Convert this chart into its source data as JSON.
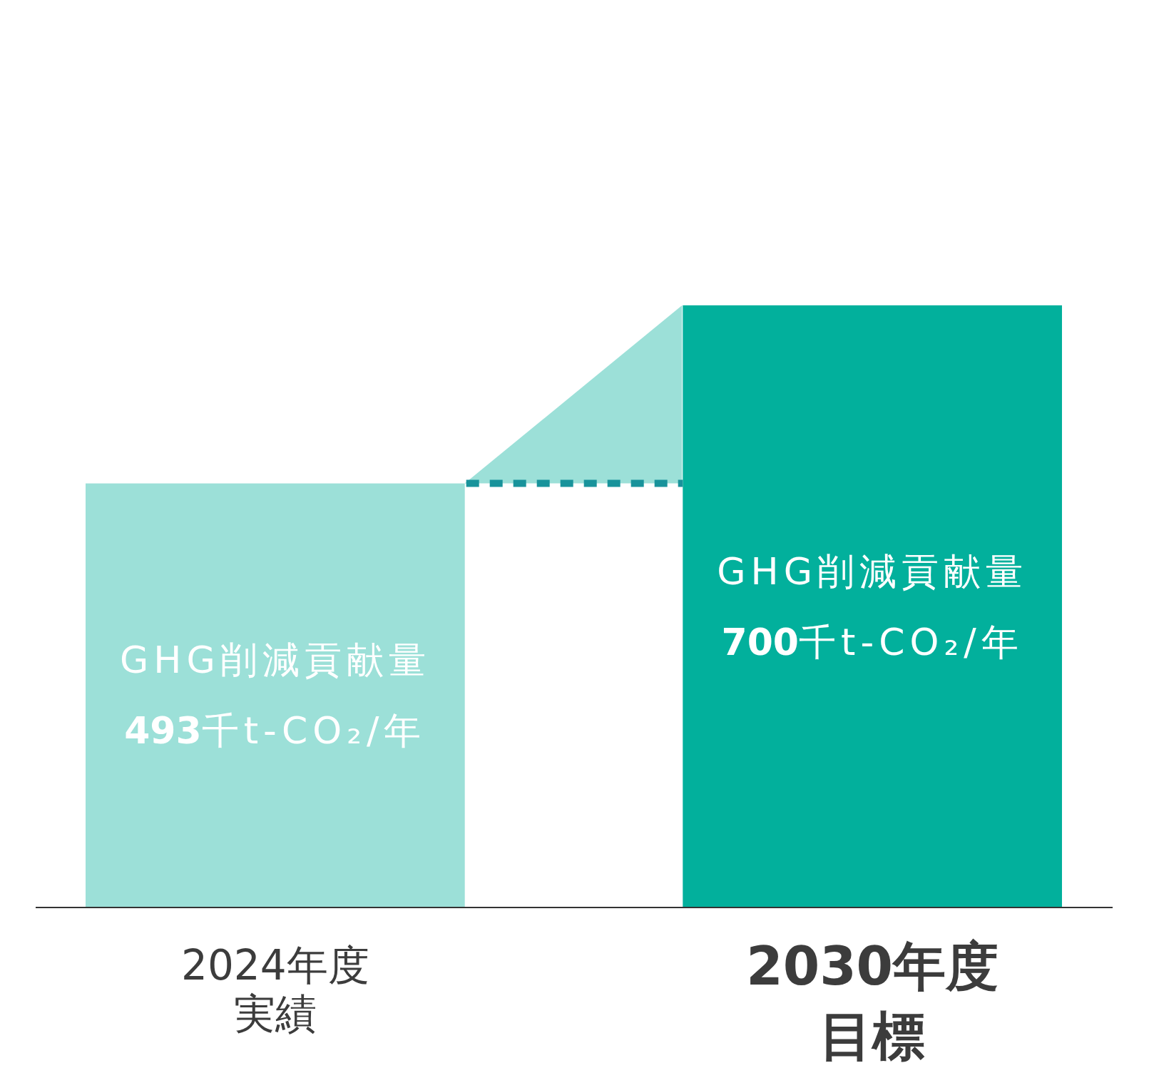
{
  "chart_data": {
    "type": "bar",
    "categories": [
      "2024年度実績",
      "2030年度目標"
    ],
    "values": [
      493,
      700
    ],
    "colors": [
      "#9ce0d8",
      "#02b09c"
    ],
    "value_labels": [
      "GHG削減貢献量\n493千t-CO₂/年",
      "GHG削減貢献量\n700千t-CO₂/年"
    ],
    "ref_lines": [
      {
        "axis": "y",
        "value": 493,
        "color": "#18939b",
        "line_style": "dashed"
      }
    ],
    "tick_labels": "x"
  }
}
